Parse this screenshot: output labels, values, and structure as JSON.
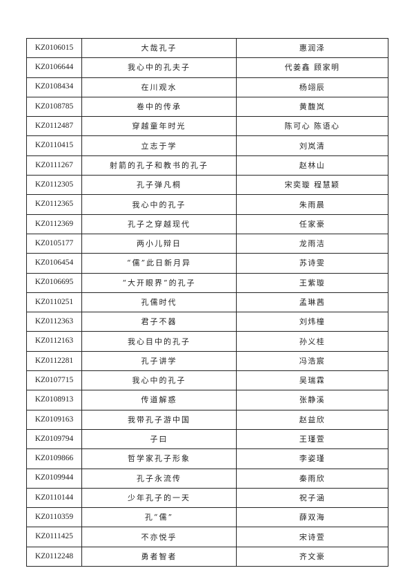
{
  "rows": [
    {
      "id": "KZ0106015",
      "title": "大哉孔子",
      "author": "惠润泽"
    },
    {
      "id": "KZ0106644",
      "title": "我心中的孔夫子",
      "author": "代姜鑫 顾家明"
    },
    {
      "id": "KZ0108434",
      "title": "在川观水",
      "author": "杨翊辰"
    },
    {
      "id": "KZ0108785",
      "title": "卷中的传承",
      "author": "黄馥岚"
    },
    {
      "id": "KZ0112487",
      "title": "穿越童年时光",
      "author": "陈可心 陈语心"
    },
    {
      "id": "KZ0110415",
      "title": "立志于学",
      "author": "刘岚清"
    },
    {
      "id": "KZ0111267",
      "title": "射箭的孔子和教书的孔子",
      "author": "赵林山"
    },
    {
      "id": "KZ0112305",
      "title": "孔子弹凡桐",
      "author": "宋奕璇 程慧颖"
    },
    {
      "id": "KZ0112365",
      "title": "我心中的孔子",
      "author": "朱雨晨"
    },
    {
      "id": "KZ0112369",
      "title": "孔子之穿越现代",
      "author": "任家豪"
    },
    {
      "id": "KZ0105177",
      "title": "两小儿辩日",
      "author": "龙雨洁"
    },
    {
      "id": "KZ0106454",
      "title": "“儒”此日新月异",
      "author": "苏诗雯"
    },
    {
      "id": "KZ0106695",
      "title": "“大开眼界”的孔子",
      "author": "王紫璇"
    },
    {
      "id": "KZ0110251",
      "title": "孔儒时代",
      "author": "孟琳茜"
    },
    {
      "id": "KZ0112363",
      "title": "君子不器",
      "author": "刘炜橦"
    },
    {
      "id": "KZ0112163",
      "title": "我心目中的孔子",
      "author": "孙义桂"
    },
    {
      "id": "KZ0112281",
      "title": "孔子讲学",
      "author": "冯浩宸"
    },
    {
      "id": "KZ0107715",
      "title": "我心中的孔子",
      "author": "吴瑞霖"
    },
    {
      "id": "KZ0108913",
      "title": "传道解惑",
      "author": "张静溪"
    },
    {
      "id": "KZ0109163",
      "title": "我带孔子游中国",
      "author": "赵益欣"
    },
    {
      "id": "KZ0109794",
      "title": "子曰",
      "author": "王瑾萱"
    },
    {
      "id": "KZ0109866",
      "title": "哲学家孔子形象",
      "author": "李姿瑾"
    },
    {
      "id": "KZ0109944",
      "title": "孔子永流传",
      "author": "秦雨欣"
    },
    {
      "id": "KZ0110144",
      "title": "少年孔子的一天",
      "author": "祝子涵"
    },
    {
      "id": "KZ0110359",
      "title": "孔“儒”",
      "author": "薛双海"
    },
    {
      "id": "KZ0111425",
      "title": "不亦悦乎",
      "author": "宋诗萱"
    },
    {
      "id": "KZ0112248",
      "title": "勇者智者",
      "author": "齐文豪"
    }
  ]
}
